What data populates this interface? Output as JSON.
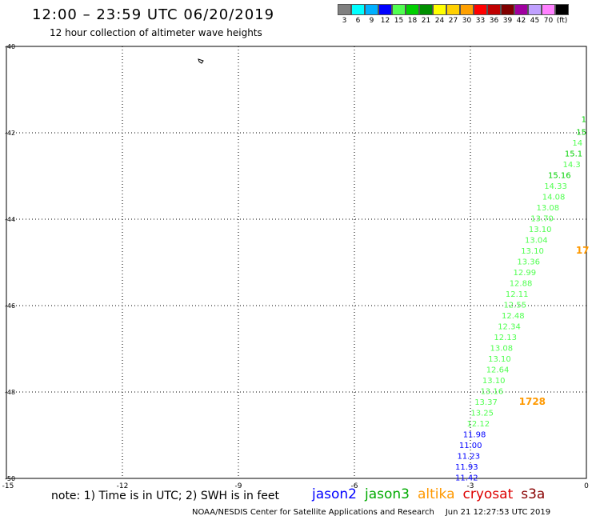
{
  "header": {
    "title": "12:00 – 23:59 UTC 06/20/2019",
    "subtitle": "12 hour collection of altimeter wave heights"
  },
  "colorbar": {
    "colors": [
      "#808080",
      "#00ffff",
      "#00b0ff",
      "#0000ff",
      "#50ff50",
      "#00d000",
      "#009000",
      "#ffff00",
      "#ffd000",
      "#ffa000",
      "#ff0000",
      "#c00000",
      "#800000",
      "#a000a0",
      "#c0a0ff",
      "#ff80ff",
      "#000000"
    ],
    "labels": [
      "3",
      "6",
      "9",
      "12",
      "15",
      "18",
      "21",
      "24",
      "27",
      "30",
      "33",
      "36",
      "39",
      "42",
      "45",
      "70",
      "(ft)"
    ]
  },
  "axes": {
    "lat_ticks": [
      "-40",
      "-42",
      "-44",
      "-46",
      "-48",
      "-50"
    ],
    "lon_ticks": [
      "-15",
      "-12",
      "-9",
      "-6",
      "-3",
      "0"
    ]
  },
  "measurements": [
    {
      "text": "1",
      "lon": 0.0,
      "lat": -41.75,
      "color": "#00d000"
    },
    {
      "text": "15",
      "lon": 0.0,
      "lat": -42.05,
      "color": "#00d000"
    },
    {
      "text": "14",
      "lon": -0.1,
      "lat": -42.3,
      "color": "#50ff50"
    },
    {
      "text": "15.1",
      "lon": -0.1,
      "lat": -42.55,
      "color": "#00d000"
    },
    {
      "text": "14.3",
      "lon": -0.15,
      "lat": -42.8,
      "color": "#50ff50"
    },
    {
      "text": "15.16",
      "lon": -0.4,
      "lat": -43.05,
      "color": "#00d000"
    },
    {
      "text": "14.33",
      "lon": -0.5,
      "lat": -43.3,
      "color": "#50ff50"
    },
    {
      "text": "14.08",
      "lon": -0.55,
      "lat": -43.55,
      "color": "#50ff50"
    },
    {
      "text": "13.08",
      "lon": -0.7,
      "lat": -43.8,
      "color": "#50ff50"
    },
    {
      "text": "13.70",
      "lon": -0.85,
      "lat": -44.05,
      "color": "#50ff50"
    },
    {
      "text": "13.10",
      "lon": -0.9,
      "lat": -44.3,
      "color": "#50ff50"
    },
    {
      "text": "13.04",
      "lon": -1.0,
      "lat": -44.55,
      "color": "#50ff50"
    },
    {
      "text": "13.10",
      "lon": -1.1,
      "lat": -44.8,
      "color": "#50ff50"
    },
    {
      "text": "13.36",
      "lon": -1.2,
      "lat": -45.05,
      "color": "#50ff50"
    },
    {
      "text": "12.99",
      "lon": -1.3,
      "lat": -45.3,
      "color": "#50ff50"
    },
    {
      "text": "12.88",
      "lon": -1.4,
      "lat": -45.55,
      "color": "#50ff50"
    },
    {
      "text": "12.11",
      "lon": -1.5,
      "lat": -45.8,
      "color": "#50ff50"
    },
    {
      "text": "12.55",
      "lon": -1.55,
      "lat": -46.05,
      "color": "#50ff50"
    },
    {
      "text": "12.48",
      "lon": -1.6,
      "lat": -46.3,
      "color": "#50ff50"
    },
    {
      "text": "12.34",
      "lon": -1.7,
      "lat": -46.55,
      "color": "#50ff50"
    },
    {
      "text": "12.13",
      "lon": -1.8,
      "lat": -46.8,
      "color": "#50ff50"
    },
    {
      "text": "13.08",
      "lon": -1.9,
      "lat": -47.05,
      "color": "#50ff50"
    },
    {
      "text": "13.10",
      "lon": -1.95,
      "lat": -47.3,
      "color": "#50ff50"
    },
    {
      "text": "12.64",
      "lon": -2.0,
      "lat": -47.55,
      "color": "#50ff50"
    },
    {
      "text": "13.10",
      "lon": -2.1,
      "lat": -47.8,
      "color": "#50ff50"
    },
    {
      "text": "13.16",
      "lon": -2.15,
      "lat": -48.05,
      "color": "#50ff50"
    },
    {
      "text": "13.37",
      "lon": -2.3,
      "lat": -48.3,
      "color": "#50ff50"
    },
    {
      "text": "13.25",
      "lon": -2.4,
      "lat": -48.55,
      "color": "#50ff50"
    },
    {
      "text": "12.12",
      "lon": -2.5,
      "lat": -48.8,
      "color": "#50ff50"
    },
    {
      "text": "11.98",
      "lon": -2.6,
      "lat": -49.05,
      "color": "#0000ff"
    },
    {
      "text": "11.00",
      "lon": -2.7,
      "lat": -49.3,
      "color": "#0000ff"
    },
    {
      "text": "11.23",
      "lon": -2.75,
      "lat": -49.55,
      "color": "#0000ff"
    },
    {
      "text": "11.93",
      "lon": -2.8,
      "lat": -49.8,
      "color": "#0000ff"
    },
    {
      "text": "11.42",
      "lon": -2.8,
      "lat": -50.05,
      "color": "#0000ff"
    }
  ],
  "time_labels": [
    {
      "text": "1728",
      "lon": -1.4,
      "lat": -48.3,
      "color": "#ff9900"
    },
    {
      "text": "17",
      "lon": -0.1,
      "lat": -44.8,
      "color": "#ff9900"
    }
  ],
  "footer": {
    "note": "note:  1) Time is in UTC;  2) SWH is in feet",
    "legend": [
      {
        "text": "jason2",
        "color": "#0000ff"
      },
      {
        "text": "jason3",
        "color": "#00aa00"
      },
      {
        "text": "altika",
        "color": "#ff9900"
      },
      {
        "text": "cryosat",
        "color": "#dd0000"
      },
      {
        "text": "s3a",
        "color": "#880000"
      }
    ],
    "credit": "NOAA/NESDIS Center for Satellite Applications and Research",
    "timestamp": "Jun 21 12:27:53 UTC 2019"
  }
}
